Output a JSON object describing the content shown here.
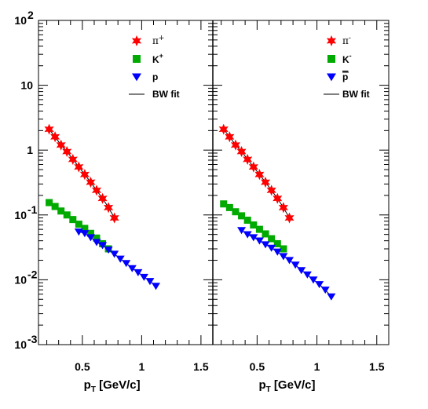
{
  "chart_data": [
    {
      "type": "scatter",
      "panel": "left",
      "xlabel": "p_T [GeV/c]",
      "ylabel": "",
      "xlim": [
        0.13,
        1.6
      ],
      "ylim": [
        0.001,
        100
      ],
      "yscale": "log",
      "grid": false,
      "legend_position": "top-right",
      "x_ticks": [
        "0.5",
        "1",
        "1.5"
      ],
      "y_tick_bases": [
        "10",
        "10",
        "10",
        "1",
        "10",
        "10",
        "10"
      ],
      "y_tick_exponents": [
        "2",
        "",
        "",
        "",
        "-1",
        "-2",
        "-3"
      ],
      "series": [
        {
          "name": "π",
          "name_sup": "+",
          "marker": "star",
          "color": "#ff0000",
          "x": [
            0.22,
            0.27,
            0.32,
            0.37,
            0.42,
            0.47,
            0.52,
            0.57,
            0.62,
            0.67,
            0.72,
            0.77
          ],
          "y": [
            2.1,
            1.6,
            1.2,
            0.95,
            0.72,
            0.55,
            0.42,
            0.32,
            0.24,
            0.18,
            0.13,
            0.09
          ]
        },
        {
          "name": "K",
          "name_sup": "+",
          "marker": "square",
          "color": "#00aa00",
          "x": [
            0.22,
            0.27,
            0.32,
            0.37,
            0.42,
            0.47,
            0.52,
            0.57,
            0.62,
            0.67,
            0.72
          ],
          "y": [
            0.155,
            0.135,
            0.115,
            0.1,
            0.085,
            0.072,
            0.062,
            0.052,
            0.044,
            0.036,
            0.03
          ]
        },
        {
          "name": "p",
          "name_sup": "",
          "marker": "triangle-down",
          "color": "#0000ff",
          "x": [
            0.47,
            0.52,
            0.57,
            0.62,
            0.67,
            0.72,
            0.77,
            0.82,
            0.87,
            0.92,
            0.97,
            1.02,
            1.07,
            1.12
          ],
          "y": [
            0.055,
            0.052,
            0.045,
            0.038,
            0.034,
            0.029,
            0.025,
            0.021,
            0.018,
            0.015,
            0.013,
            0.011,
            0.0095,
            0.008
          ]
        },
        {
          "name": "BW fit",
          "name_sup": "",
          "marker": "line",
          "color": "#000000",
          "fits": true
        }
      ]
    },
    {
      "type": "scatter",
      "panel": "right",
      "xlabel": "p_T [GeV/c]",
      "ylabel": "",
      "xlim": [
        0.13,
        1.6
      ],
      "ylim": [
        0.001,
        100
      ],
      "yscale": "log",
      "grid": false,
      "legend_position": "top-right",
      "x_ticks": [
        "0.5",
        "1",
        "1.5"
      ],
      "series": [
        {
          "name": "π",
          "name_sup": "-",
          "marker": "star",
          "color": "#ff0000",
          "x": [
            0.22,
            0.27,
            0.32,
            0.37,
            0.42,
            0.47,
            0.52,
            0.57,
            0.62,
            0.67,
            0.72,
            0.77
          ],
          "y": [
            2.1,
            1.6,
            1.2,
            0.95,
            0.72,
            0.55,
            0.42,
            0.32,
            0.24,
            0.18,
            0.13,
            0.09
          ]
        },
        {
          "name": "K",
          "name_sup": "-",
          "marker": "square",
          "color": "#00aa00",
          "x": [
            0.22,
            0.27,
            0.32,
            0.37,
            0.42,
            0.47,
            0.52,
            0.57,
            0.62,
            0.67,
            0.72
          ],
          "y": [
            0.148,
            0.13,
            0.112,
            0.097,
            0.083,
            0.07,
            0.06,
            0.051,
            0.043,
            0.036,
            0.03
          ]
        },
        {
          "name": "p",
          "name_overline": true,
          "name_sup": "",
          "marker": "triangle-down",
          "color": "#0000ff",
          "x": [
            0.37,
            0.42,
            0.47,
            0.52,
            0.57,
            0.62,
            0.67,
            0.72,
            0.77,
            0.82,
            0.87,
            0.92,
            0.97,
            1.02,
            1.07,
            1.12
          ],
          "y": [
            0.058,
            0.05,
            0.045,
            0.04,
            0.035,
            0.031,
            0.027,
            0.023,
            0.02,
            0.017,
            0.014,
            0.012,
            0.01,
            0.0085,
            0.007,
            0.0055
          ]
        },
        {
          "name": "BW fit",
          "name_sup": "",
          "marker": "line",
          "color": "#000000",
          "fits": true
        }
      ]
    }
  ]
}
